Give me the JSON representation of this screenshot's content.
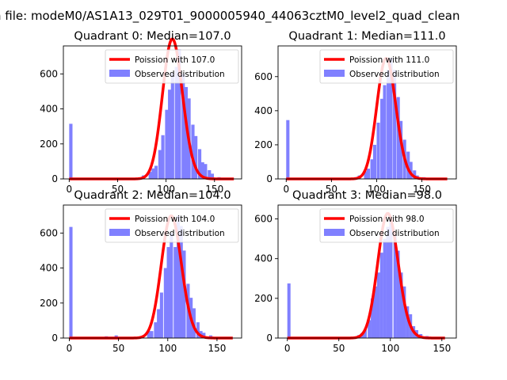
{
  "figure_title": "n file: modeM0/AS1A13_029T01_9000005940_44063cztM0_level2_quad_clean",
  "colors": {
    "poisson": "#ff0000",
    "observed": "#8080ff"
  },
  "chart_data": [
    {
      "type": "bar",
      "title": "Quadrant 0: Median=107.0",
      "xlim": [
        -6,
        178
      ],
      "ylim": [
        0,
        760
      ],
      "xticks": [
        0,
        50,
        100,
        150
      ],
      "yticks": [
        0,
        200,
        400,
        600
      ],
      "legend_placement": "upper-right",
      "series": [
        {
          "name": "Poission with 107.0",
          "kind": "line",
          "median": 107.0,
          "x_range": [
            0,
            170
          ]
        },
        {
          "name": "Observed distribution",
          "kind": "histogram",
          "bin_width": 3.4,
          "bins": [
            [
              0,
              315
            ],
            [
              41,
              5
            ],
            [
              58,
              5
            ],
            [
              65,
              5
            ],
            [
              75,
              20
            ],
            [
              82,
              40
            ],
            [
              85,
              60
            ],
            [
              88,
              75
            ],
            [
              92,
              165
            ],
            [
              95,
              250
            ],
            [
              99,
              395
            ],
            [
              102,
              510
            ],
            [
              105,
              605
            ],
            [
              109,
              640
            ],
            [
              112,
              740
            ],
            [
              116,
              600
            ],
            [
              119,
              525
            ],
            [
              122,
              460
            ],
            [
              126,
              310
            ],
            [
              129,
              245
            ],
            [
              133,
              170
            ],
            [
              136,
              95
            ],
            [
              139,
              85
            ],
            [
              143,
              50
            ],
            [
              146,
              30
            ],
            [
              153,
              10
            ],
            [
              160,
              5
            ]
          ]
        }
      ]
    },
    {
      "type": "bar",
      "title": "Quadrant 1: Median=111.0",
      "xlim": [
        -9,
        188
      ],
      "ylim": [
        0,
        780
      ],
      "xticks": [
        0,
        50,
        100,
        150
      ],
      "yticks": [
        0,
        200,
        400,
        600
      ],
      "legend_placement": "upper-right",
      "series": [
        {
          "name": "Poission with 111.0",
          "kind": "line",
          "median": 111.0,
          "x_range": [
            0,
            178
          ]
        },
        {
          "name": "Observed distribution",
          "kind": "histogram",
          "bin_width": 3.6,
          "bins": [
            [
              0,
              345
            ],
            [
              64,
              5
            ],
            [
              75,
              10
            ],
            [
              79,
              20
            ],
            [
              86,
              45
            ],
            [
              89,
              60
            ],
            [
              93,
              115
            ],
            [
              96,
              200
            ],
            [
              100,
              330
            ],
            [
              104,
              470
            ],
            [
              107,
              550
            ],
            [
              111,
              640
            ],
            [
              114,
              710
            ],
            [
              118,
              640
            ],
            [
              122,
              480
            ],
            [
              125,
              340
            ],
            [
              129,
              230
            ],
            [
              133,
              160
            ],
            [
              136,
              100
            ],
            [
              140,
              50
            ],
            [
              143,
              20
            ],
            [
              150,
              10
            ],
            [
              157,
              5
            ]
          ]
        }
      ]
    },
    {
      "type": "bar",
      "title": "Quadrant 2: Median=104.0",
      "xlim": [
        -6,
        175
      ],
      "ylim": [
        0,
        760
      ],
      "xticks": [
        0,
        50,
        100,
        150
      ],
      "yticks": [
        0,
        200,
        400,
        600
      ],
      "legend_placement": "upper-right",
      "series": [
        {
          "name": "Poission with 104.0",
          "kind": "line",
          "median": 104.0,
          "x_range": [
            0,
            166
          ]
        },
        {
          "name": "Observed distribution",
          "kind": "histogram",
          "bin_width": 3.3,
          "bins": [
            [
              0,
              635
            ],
            [
              36,
              10
            ],
            [
              46,
              15
            ],
            [
              53,
              5
            ],
            [
              66,
              5
            ],
            [
              73,
              10
            ],
            [
              79,
              40
            ],
            [
              82,
              40
            ],
            [
              86,
              90
            ],
            [
              89,
              165
            ],
            [
              92,
              260
            ],
            [
              96,
              400
            ],
            [
              99,
              520
            ],
            [
              102,
              600
            ],
            [
              106,
              520
            ],
            [
              109,
              700
            ],
            [
              112,
              640
            ],
            [
              115,
              500
            ],
            [
              119,
              310
            ],
            [
              122,
              230
            ],
            [
              125,
              170
            ],
            [
              129,
              90
            ],
            [
              132,
              40
            ],
            [
              135,
              30
            ],
            [
              142,
              15
            ],
            [
              148,
              5
            ]
          ]
        }
      ]
    },
    {
      "type": "bar",
      "title": "Quadrant 3: Median=98.0",
      "xlim": [
        -9,
        164
      ],
      "ylim": [
        0,
        670
      ],
      "xticks": [
        0,
        50,
        100,
        150
      ],
      "yticks": [
        0,
        200,
        400,
        600
      ],
      "legend_placement": "upper-right",
      "series": [
        {
          "name": "Poission with 98.0",
          "kind": "line",
          "median": 98.0,
          "x_range": [
            0,
            153
          ]
        },
        {
          "name": "Observed distribution",
          "kind": "histogram",
          "bin_width": 3.1,
          "bins": [
            [
              0,
              275
            ],
            [
              53,
              5
            ],
            [
              62,
              5
            ],
            [
              68,
              15
            ],
            [
              71,
              25
            ],
            [
              74,
              45
            ],
            [
              78,
              90
            ],
            [
              81,
              200
            ],
            [
              84,
              260
            ],
            [
              87,
              330
            ],
            [
              90,
              430
            ],
            [
              93,
              500
            ],
            [
              96,
              560
            ],
            [
              99,
              600
            ],
            [
              103,
              520
            ],
            [
              106,
              440
            ],
            [
              109,
              330
            ],
            [
              112,
              260
            ],
            [
              115,
              160
            ],
            [
              118,
              120
            ],
            [
              121,
              60
            ],
            [
              124,
              40
            ],
            [
              128,
              20
            ],
            [
              134,
              10
            ],
            [
              140,
              5
            ]
          ]
        }
      ]
    }
  ]
}
